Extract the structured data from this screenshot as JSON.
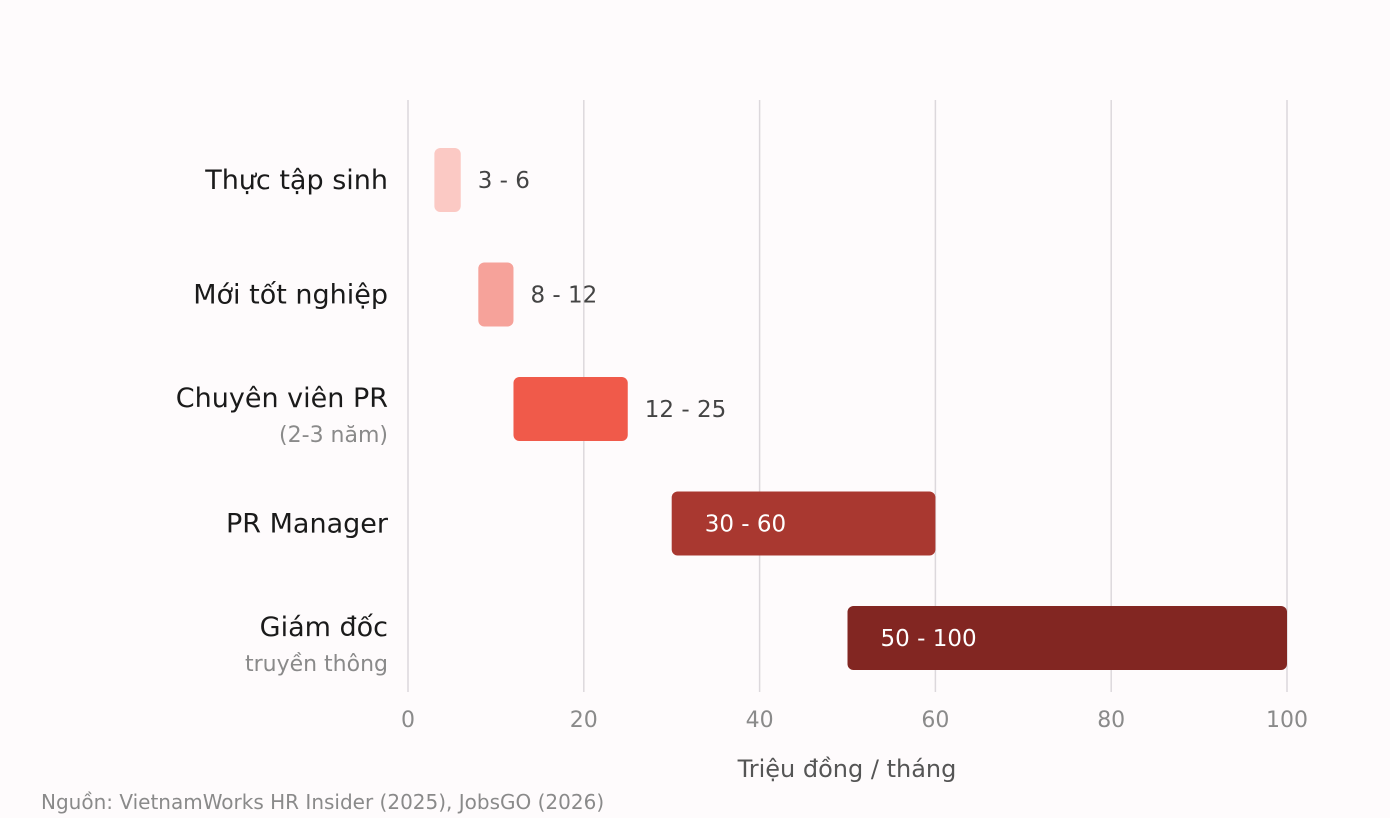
{
  "chart_data": {
    "type": "bar",
    "orientation": "horizontal",
    "subtype": "range",
    "categories": [
      {
        "label": "Thực tập sinh",
        "sublabel": ""
      },
      {
        "label": "Mới tốt nghiệp",
        "sublabel": ""
      },
      {
        "label": "Chuyên viên PR",
        "sublabel": "(2-3 năm)"
      },
      {
        "label": "PR Manager",
        "sublabel": ""
      },
      {
        "label": "Giám đốc",
        "sublabel": "truyền thông"
      }
    ],
    "ranges": [
      {
        "min": 3,
        "max": 6,
        "label": "3 - 6",
        "color": "#fbc9c4",
        "label_inside": false
      },
      {
        "min": 8,
        "max": 12,
        "label": "8 - 12",
        "color": "#f6a29a",
        "label_inside": false
      },
      {
        "min": 12,
        "max": 25,
        "label": "12 - 25",
        "color": "#f05a4a",
        "label_inside": false
      },
      {
        "min": 30,
        "max": 60,
        "label": "30 - 60",
        "color": "#a93830",
        "label_inside": true
      },
      {
        "min": 50,
        "max": 100,
        "label": "50 - 100",
        "color": "#822622",
        "label_inside": true
      }
    ],
    "xlim": [
      0,
      100
    ],
    "xticks": [
      0,
      20,
      40,
      60,
      80,
      100
    ],
    "xlabel": "Triệu đồng / tháng",
    "grid": "vertical",
    "title": ""
  },
  "source_note": "Nguồn: VietnamWorks HR Insider (2025), JobsGO (2026)"
}
